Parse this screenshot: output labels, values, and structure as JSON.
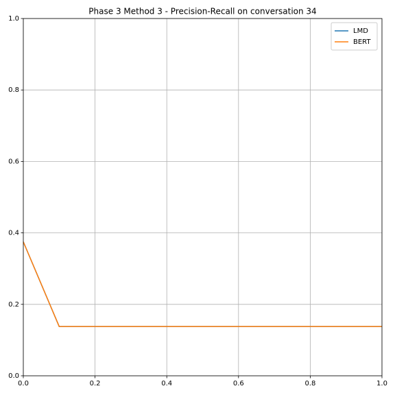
{
  "chart_data": {
    "type": "line",
    "title": "Phase 3 Method 3 - Precision-Recall on conversation 34",
    "x": [
      0,
      0.1,
      1
    ],
    "series": [
      {
        "name": "LMD",
        "color": "#1f77b4",
        "values": [
          0.375,
          0.138,
          0.138
        ]
      },
      {
        "name": "BERT",
        "color": "#ff7f0e",
        "values": [
          0.375,
          0.138,
          0.138
        ]
      }
    ],
    "xlim": [
      0,
      1
    ],
    "ylim": [
      0,
      1
    ],
    "xticks": [
      {
        "value": 0,
        "label": "0.0"
      },
      0.2,
      0.4,
      0.6,
      0.8,
      {
        "value": 1,
        "label": "1.0"
      }
    ],
    "yticks": [
      {
        "value": 0,
        "label": "0.0"
      },
      0.2,
      0.4,
      0.6,
      0.8,
      {
        "value": 1,
        "label": "1.0"
      }
    ],
    "grid": true,
    "legend": "upper right"
  }
}
